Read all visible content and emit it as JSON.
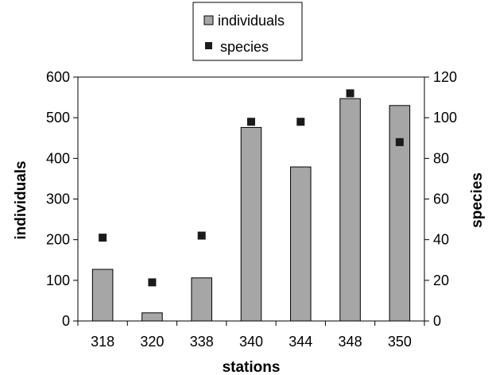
{
  "chart_data": {
    "type": "bar",
    "categories": [
      "318",
      "320",
      "338",
      "340",
      "344",
      "348",
      "350"
    ],
    "series": [
      {
        "name": "individuals",
        "kind": "bar",
        "axis": "left",
        "color": "#a6a6a6",
        "values": [
          127,
          20,
          106,
          476,
          379,
          547,
          530
        ]
      },
      {
        "name": "species",
        "kind": "scatter",
        "axis": "right",
        "marker": "square",
        "color": "#1a1a1a",
        "values": [
          41,
          19,
          42,
          98,
          98,
          112,
          88
        ]
      }
    ],
    "xlabel": "stations",
    "ylabel": "individuals",
    "y2label": "species",
    "ylim": [
      0,
      600
    ],
    "y2lim": [
      0,
      120
    ],
    "yticks": [
      "0",
      "100",
      "200",
      "300",
      "400",
      "500",
      "600"
    ],
    "y2ticks": [
      "0",
      "20",
      "40",
      "60",
      "80",
      "100",
      "120"
    ],
    "grid": false,
    "legend_position": "top-center"
  }
}
